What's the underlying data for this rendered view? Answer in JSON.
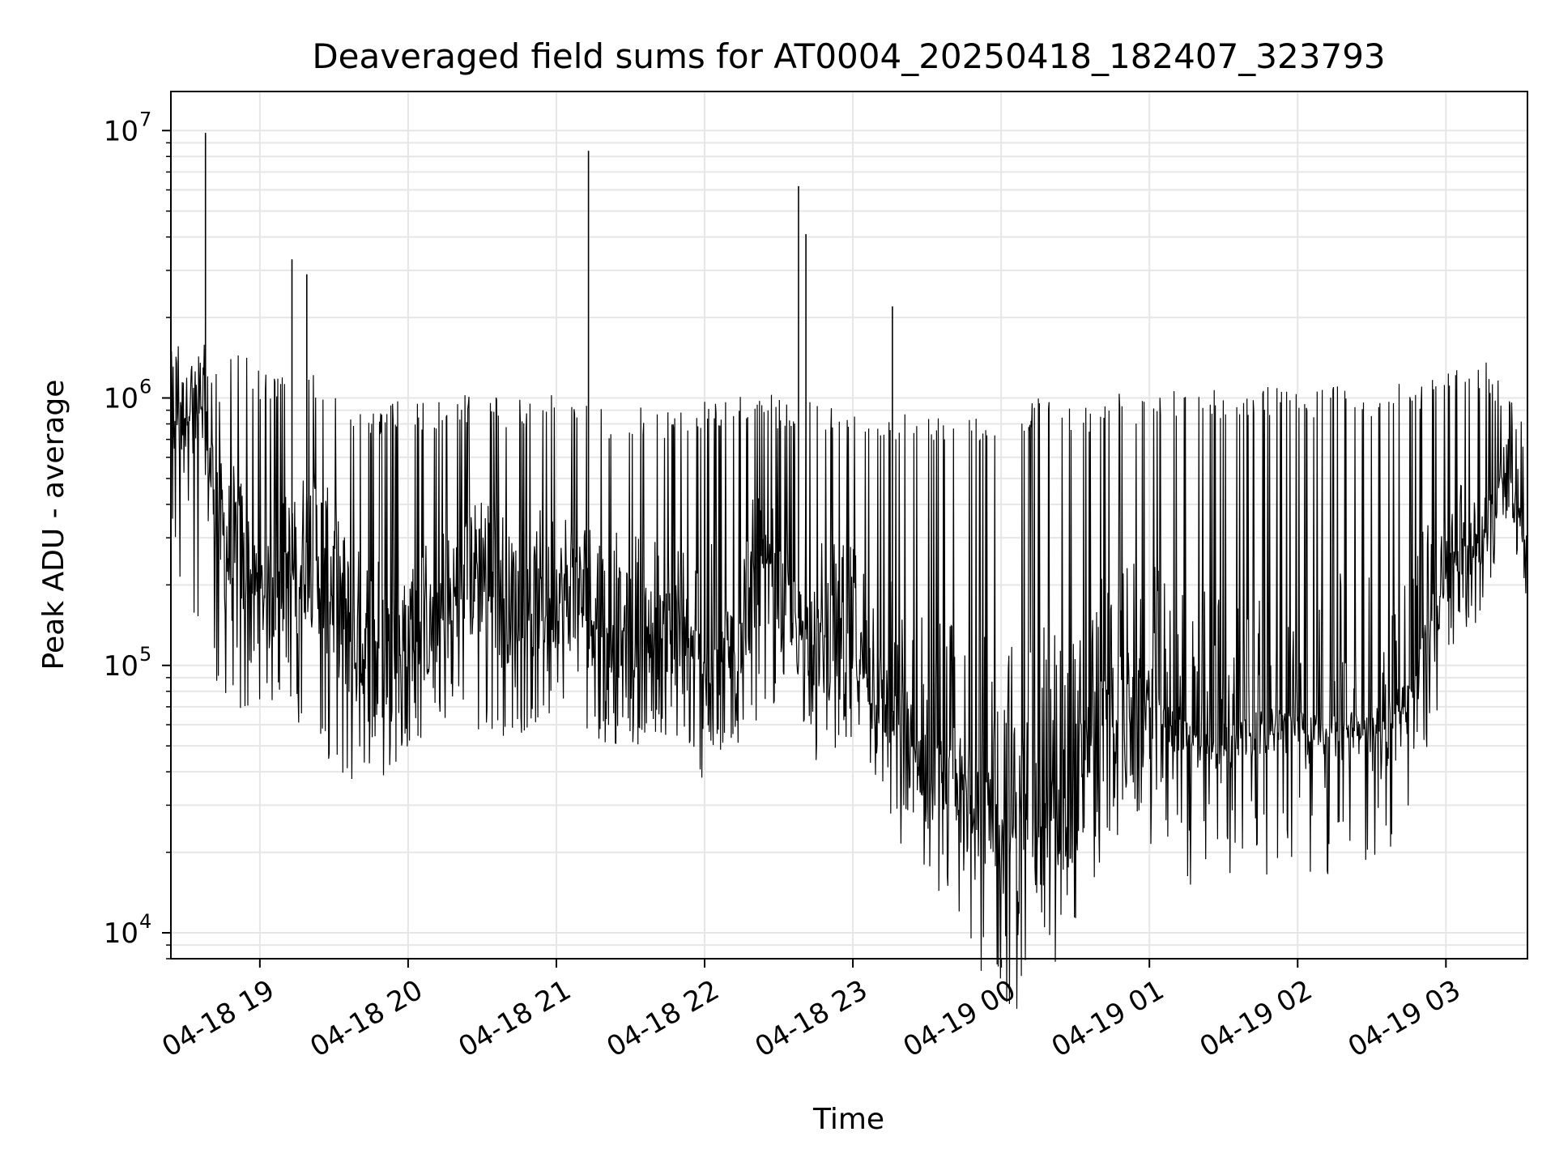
{
  "chart_data": {
    "type": "line",
    "title": "Deaveraged field sums for AT0004_20250418_182407_323793",
    "xlabel": "Time",
    "ylabel": "Peak ADU - average",
    "y_scale": "log",
    "ylim": [
      8000,
      14000000
    ],
    "xlim": [
      "2025-04-18 18:24",
      "2025-04-19 03:33"
    ],
    "grid": true,
    "legend": "none",
    "line_color": "#000000",
    "grid_color": "#e6e6e6",
    "x_ticks": [
      {
        "value": "2025-04-18 19:00",
        "label": "04-18 19"
      },
      {
        "value": "2025-04-18 20:00",
        "label": "04-18 20"
      },
      {
        "value": "2025-04-18 21:00",
        "label": "04-18 21"
      },
      {
        "value": "2025-04-18 22:00",
        "label": "04-18 22"
      },
      {
        "value": "2025-04-18 23:00",
        "label": "04-18 23"
      },
      {
        "value": "2025-04-19 00:00",
        "label": "04-19 00"
      },
      {
        "value": "2025-04-19 01:00",
        "label": "04-19 01"
      },
      {
        "value": "2025-04-19 02:00",
        "label": "04-19 02"
      },
      {
        "value": "2025-04-19 03:00",
        "label": "04-19 03"
      }
    ],
    "y_ticks": [
      {
        "value": 10000,
        "base": "10",
        "exp": "4"
      },
      {
        "value": 100000,
        "base": "10",
        "exp": "5"
      },
      {
        "value": 1000000,
        "base": "10",
        "exp": "6"
      },
      {
        "value": 10000000,
        "base": "10",
        "exp": "7"
      }
    ],
    "series": [
      {
        "x": [
          "2025-04-18 18:24",
          "2025-04-18 18:30",
          "2025-04-18 18:38",
          "2025-04-18 18:45",
          "2025-04-18 18:50",
          "2025-04-18 19:00",
          "2025-04-18 19:10",
          "2025-04-18 19:20",
          "2025-04-18 19:30",
          "2025-04-18 19:40",
          "2025-04-18 19:50",
          "2025-04-18 20:00",
          "2025-04-18 20:10",
          "2025-04-18 20:20",
          "2025-04-18 20:30",
          "2025-04-18 20:40",
          "2025-04-18 20:50",
          "2025-04-18 21:00",
          "2025-04-18 21:10",
          "2025-04-18 21:20",
          "2025-04-18 21:30",
          "2025-04-18 21:40",
          "2025-04-18 21:50",
          "2025-04-18 22:00",
          "2025-04-18 22:10",
          "2025-04-18 22:20",
          "2025-04-18 22:30",
          "2025-04-18 22:38",
          "2025-04-18 22:45",
          "2025-04-18 22:55",
          "2025-04-18 23:05",
          "2025-04-18 23:15",
          "2025-04-18 23:25",
          "2025-04-18 23:35",
          "2025-04-18 23:45",
          "2025-04-18 23:55",
          "2025-04-19 00:05",
          "2025-04-19 00:15",
          "2025-04-19 00:25",
          "2025-04-19 00:35",
          "2025-04-19 00:45",
          "2025-04-19 00:55",
          "2025-04-19 01:05",
          "2025-04-19 01:15",
          "2025-04-19 01:25",
          "2025-04-19 01:35",
          "2025-04-19 01:45",
          "2025-04-19 01:55",
          "2025-04-19 02:05",
          "2025-04-19 02:15",
          "2025-04-19 02:25",
          "2025-04-19 02:35",
          "2025-04-19 02:45",
          "2025-04-19 02:55",
          "2025-04-19 03:05",
          "2025-04-19 03:15",
          "2025-04-19 03:25",
          "2025-04-19 03:33"
        ],
        "low": [
          300000,
          150000,
          120000,
          70000,
          65000,
          75000,
          70000,
          55000,
          40000,
          30000,
          32000,
          50000,
          55000,
          60000,
          55000,
          50000,
          60000,
          65000,
          55000,
          50000,
          48000,
          52000,
          50000,
          45000,
          45000,
          60000,
          70000,
          80000,
          40000,
          50000,
          45000,
          30000,
          22000,
          20000,
          18000,
          16000,
          12000,
          14000,
          16000,
          20000,
          25000,
          40000,
          36000,
          38000,
          40000,
          42000,
          44000,
          44000,
          42000,
          42000,
          45000,
          48000,
          55000,
          100000,
          100000,
          180000,
          300000,
          250000
        ],
        "mid": [
          900000,
          1000000,
          700000,
          300000,
          250000,
          180000,
          200000,
          300000,
          200000,
          110000,
          100000,
          130000,
          140000,
          180000,
          250000,
          180000,
          160000,
          190000,
          180000,
          150000,
          140000,
          130000,
          120000,
          100000,
          110000,
          200000,
          180000,
          150000,
          120000,
          120000,
          100000,
          70000,
          45000,
          40000,
          35000,
          30000,
          25000,
          28000,
          35000,
          50000,
          70000,
          80000,
          65000,
          55000,
          50000,
          58000,
          60000,
          60000,
          58000,
          58000,
          60000,
          65000,
          80000,
          150000,
          230000,
          300000,
          500000,
          280000
        ],
        "high": [
          1500000,
          1600000,
          1400000,
          1200000,
          1800000,
          1300000,
          1200000,
          1300000,
          1100000,
          900000,
          950000,
          1000000,
          950000,
          1050000,
          1050000,
          1000000,
          1000000,
          1100000,
          950000,
          900000,
          900000,
          950000,
          900000,
          1000000,
          1000000,
          1100000,
          1000000,
          1000000,
          950000,
          950000,
          950000,
          900000,
          900000,
          900000,
          850000,
          850000,
          950000,
          1000000,
          1000000,
          950000,
          1050000,
          1050000,
          1050000,
          1100000,
          1100000,
          1100000,
          1100000,
          1100000,
          1100000,
          1150000,
          1100000,
          1100000,
          1150000,
          1200000,
          1300000,
          1400000,
          1100000,
          800000
        ],
        "spikes": [
          {
            "x": "2025-04-18 18:38",
            "y": 9800000
          },
          {
            "x": "2025-04-18 19:13",
            "y": 3300000
          },
          {
            "x": "2025-04-18 19:19",
            "y": 2900000
          },
          {
            "x": "2025-04-18 21:13",
            "y": 8400000
          },
          {
            "x": "2025-04-18 22:38",
            "y": 6200000
          },
          {
            "x": "2025-04-18 22:41",
            "y": 4100000
          },
          {
            "x": "2025-04-18 23:16",
            "y": 2200000
          }
        ]
      }
    ]
  }
}
